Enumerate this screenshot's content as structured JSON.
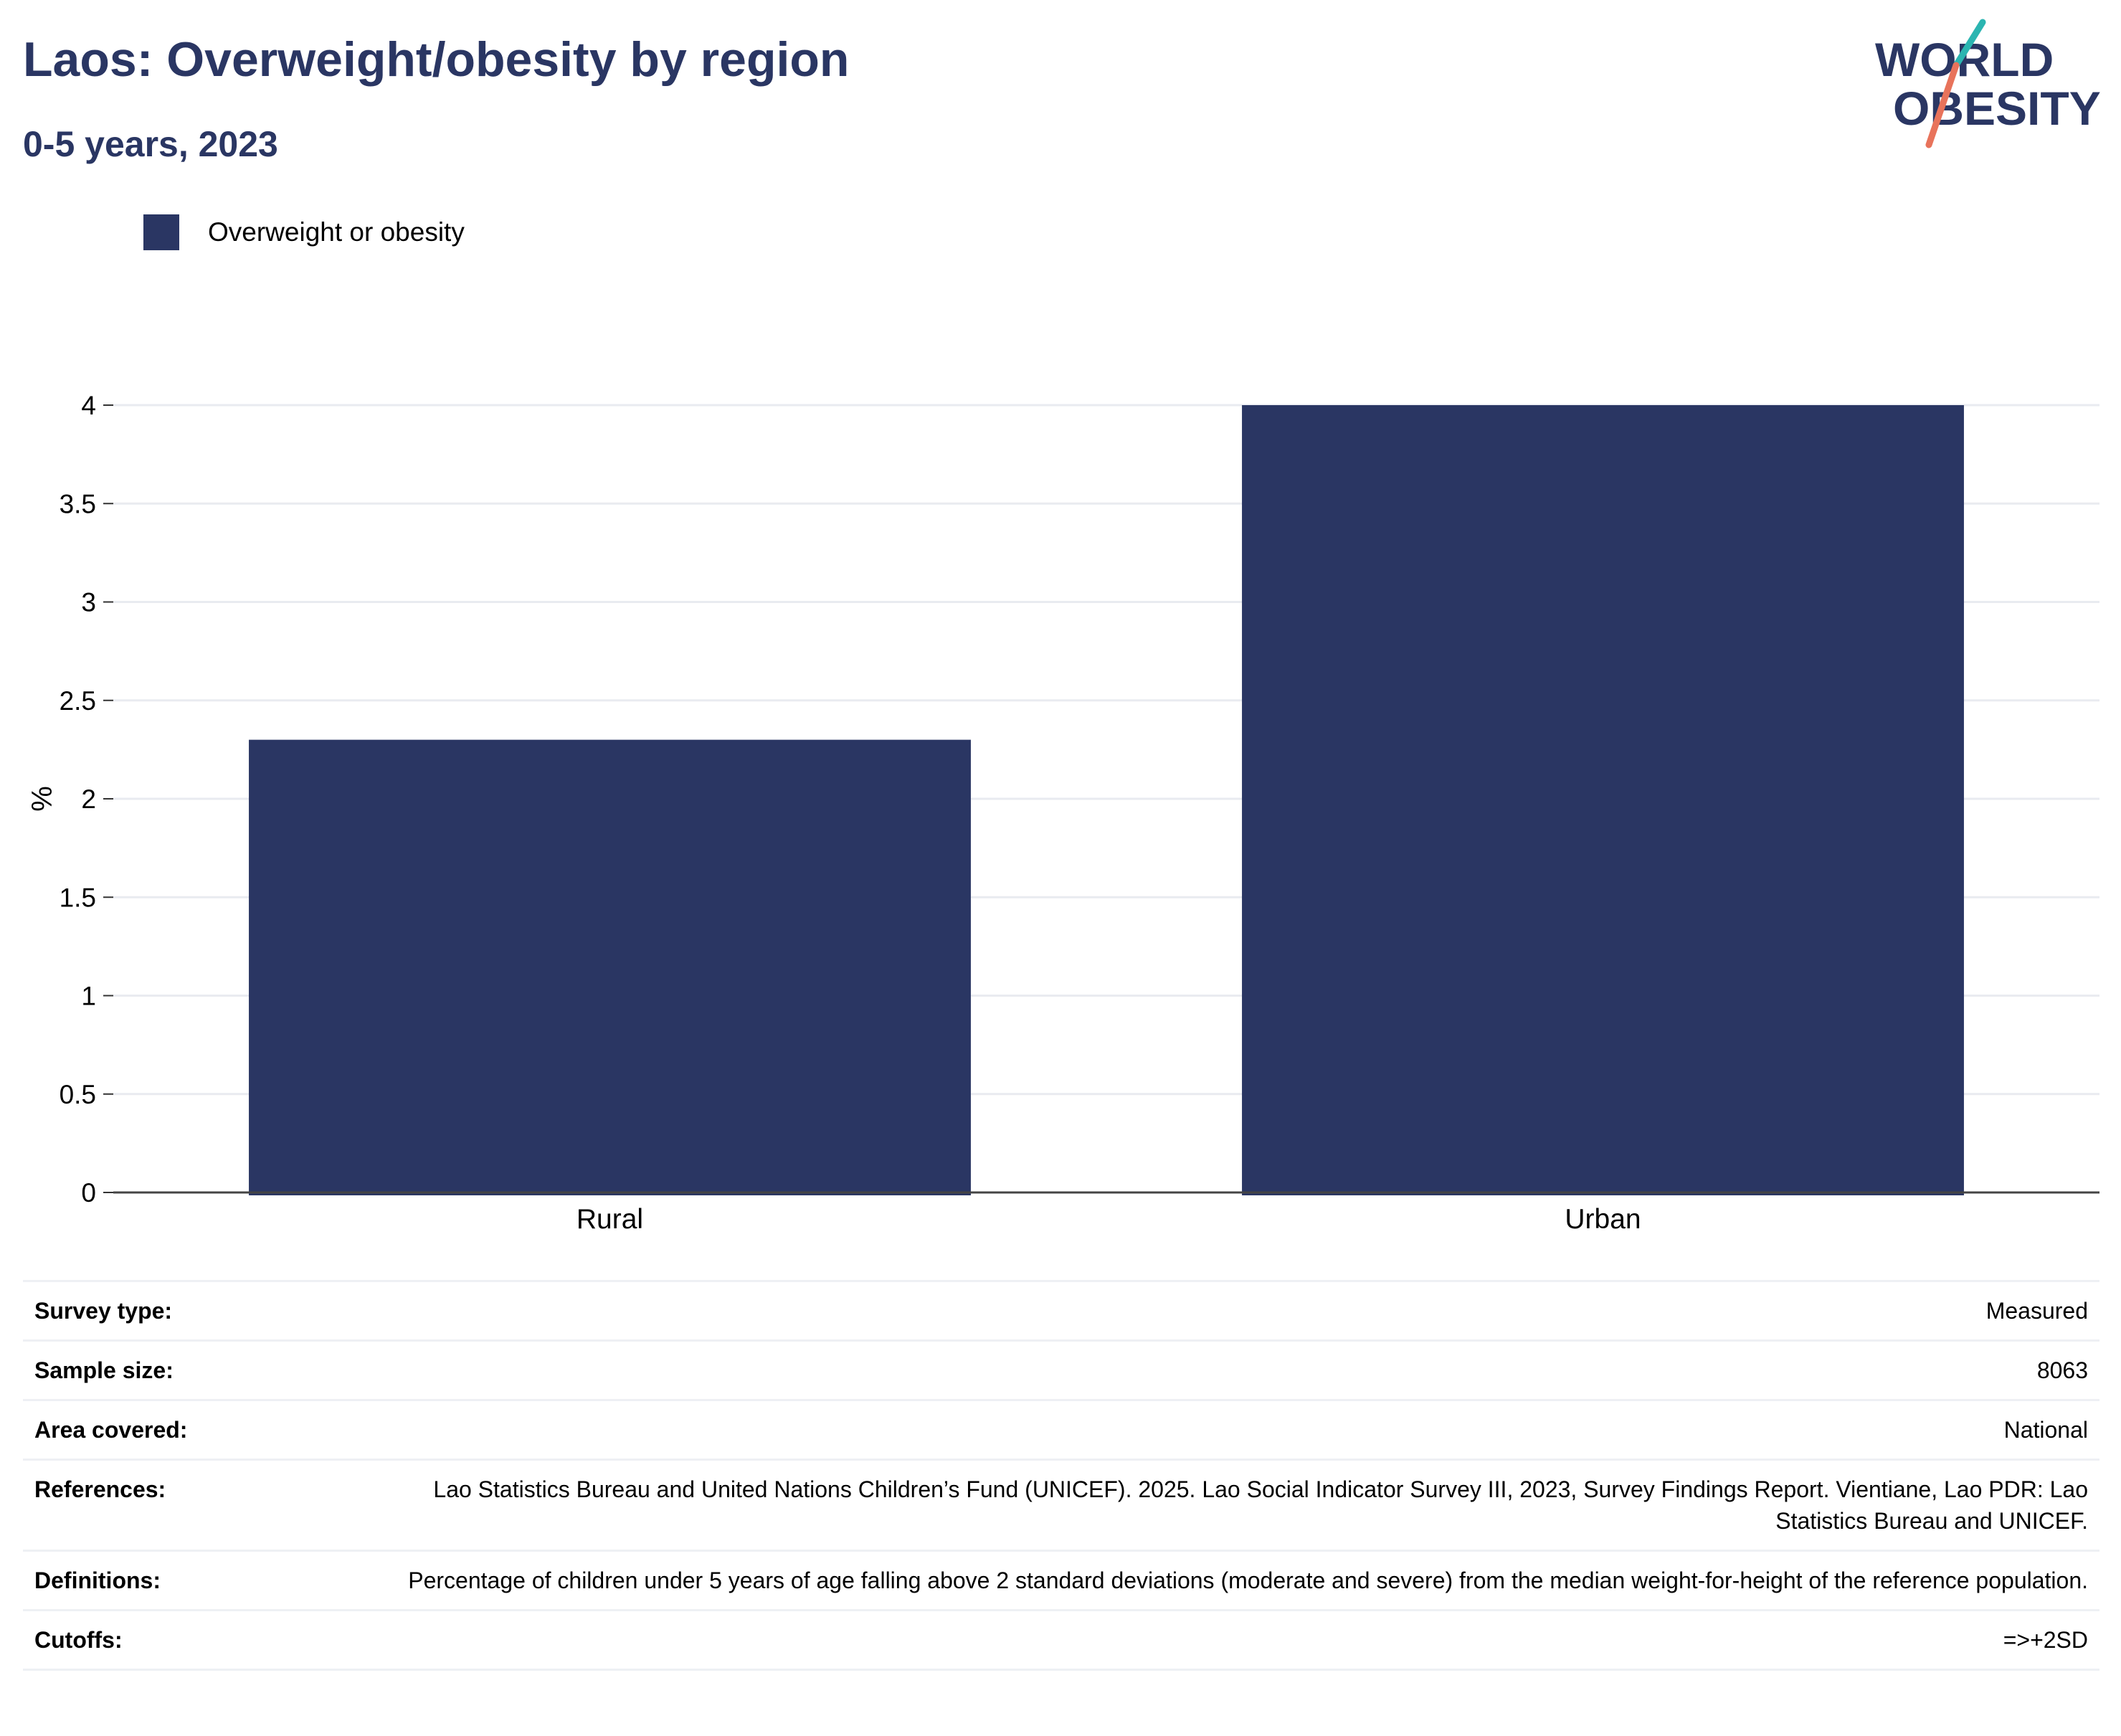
{
  "header": {
    "title": "Laos: Overweight/obesity by region",
    "subtitle": "0-5 years, 2023"
  },
  "logo": {
    "line1": "WORLD",
    "line2": "OBESITY"
  },
  "colors": {
    "bar": "#2a3663",
    "text": "#2a3663",
    "grid": "#e9ebf0",
    "logo_teal": "#2bb5b1",
    "logo_coral": "#e8735b"
  },
  "legend": {
    "label": "Overweight or obesity"
  },
  "chart_data": {
    "type": "bar",
    "categories": [
      "Rural",
      "Urban"
    ],
    "series": [
      {
        "name": "Overweight or obesity",
        "values": [
          2.3,
          4.0
        ]
      }
    ],
    "ylabel": "%",
    "xlabel": "",
    "ylim": [
      0,
      4
    ],
    "yticks": [
      "0",
      "0.5",
      "1",
      "1.5",
      "2",
      "2.5",
      "3",
      "3.5",
      "4"
    ],
    "grid": true,
    "legend_position": "top-left"
  },
  "info": {
    "survey_type": {
      "label": "Survey type:",
      "value": "Measured"
    },
    "sample_size": {
      "label": "Sample size:",
      "value": "8063"
    },
    "area_covered": {
      "label": "Area covered:",
      "value": "National"
    },
    "references": {
      "label": "References:",
      "value": "Lao Statistics Bureau and United Nations Children’s Fund (UNICEF). 2025. Lao Social Indicator Survey III, 2023, Survey Findings Report. Vientiane, Lao PDR: Lao Statistics Bureau and UNICEF."
    },
    "definitions": {
      "label": "Definitions:",
      "value": "Percentage of children under 5 years of age falling above 2 standard deviations (moderate and severe) from the median weight-for-height of the reference population."
    },
    "cutoffs": {
      "label": "Cutoffs:",
      "value": "=>+2SD"
    }
  }
}
